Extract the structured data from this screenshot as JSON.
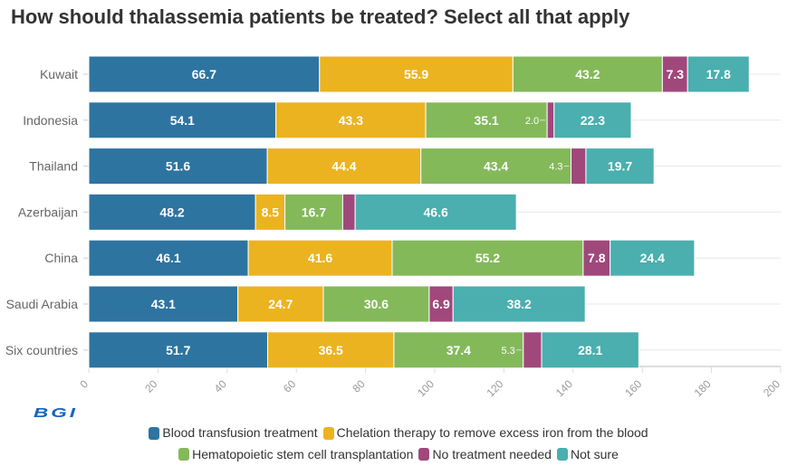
{
  "chart_data": {
    "type": "bar",
    "orientation": "horizontal",
    "stacked": true,
    "title": "How should thalassemia patients be treated? Select all that apply",
    "categories": [
      "Kuwait",
      "Indonesia",
      "Thailand",
      "Azerbaijan",
      "China",
      "Saudi Arabia",
      "Six countries"
    ],
    "series": [
      {
        "name": "Blood transfusion treatment",
        "color": "#2e74a0",
        "values": [
          66.7,
          54.1,
          51.6,
          48.2,
          46.1,
          43.1,
          51.7
        ]
      },
      {
        "name": "Chelation therapy to remove excess iron from the blood",
        "color": "#ecb321",
        "values": [
          55.9,
          43.3,
          44.4,
          8.5,
          41.6,
          24.7,
          36.5
        ]
      },
      {
        "name": "Hematopoietic stem cell transplantation",
        "color": "#84b95a",
        "values": [
          43.2,
          35.1,
          43.4,
          16.7,
          55.2,
          30.6,
          37.4
        ]
      },
      {
        "name": "No treatment needed",
        "color": "#a0487c",
        "values": [
          7.3,
          2.0,
          4.3,
          3.6,
          7.8,
          6.9,
          5.3
        ]
      },
      {
        "name": "Not sure",
        "color": "#4aafae",
        "values": [
          17.8,
          22.3,
          19.7,
          46.6,
          24.4,
          38.2,
          28.1
        ]
      }
    ],
    "xlim": [
      0,
      200
    ],
    "xticks": [
      0,
      20,
      40,
      60,
      80,
      100,
      120,
      140,
      160,
      180,
      200
    ],
    "grid": true,
    "legend": "bottom"
  },
  "logo": "BGI"
}
